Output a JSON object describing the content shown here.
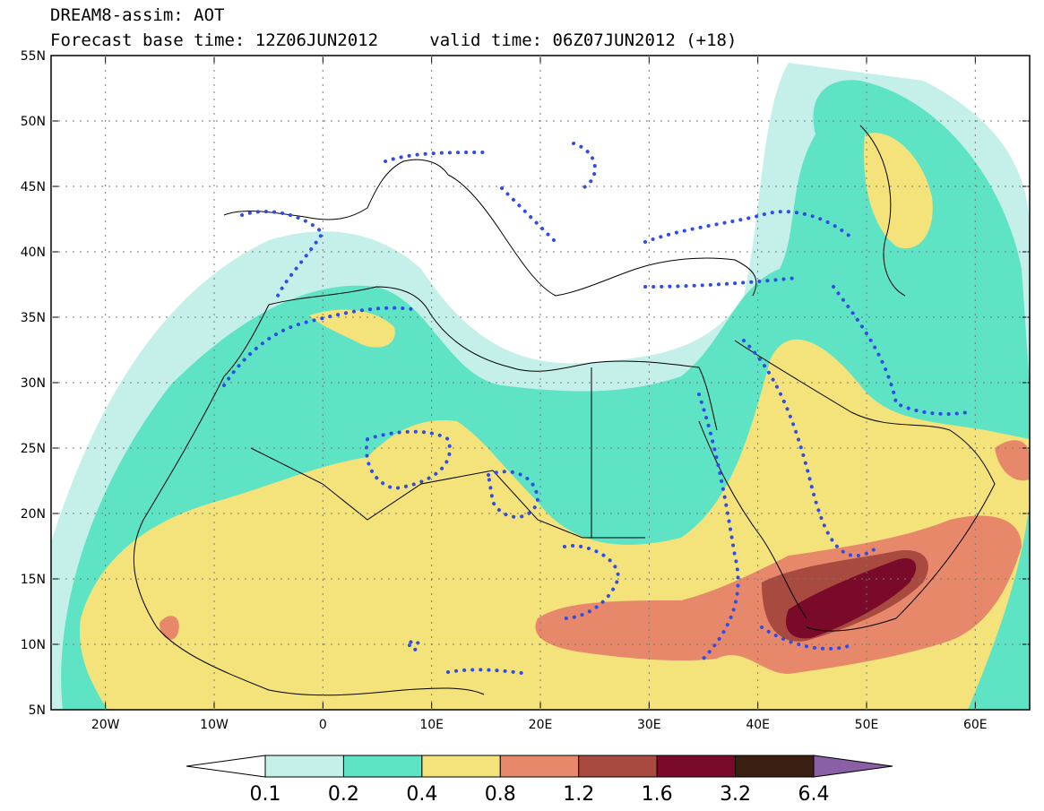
{
  "header": {
    "title": "DREAM8-assim: AOT",
    "base_time": "Forecast base time: 12Z06JUN2012",
    "valid_time": "valid time: 06Z07JUN2012 (+18)"
  },
  "axes": {
    "lat_labels": [
      "55N",
      "50N",
      "45N",
      "40N",
      "35N",
      "30N",
      "25N",
      "20N",
      "15N",
      "10N",
      "5N"
    ],
    "lon_labels": [
      "20W",
      "10W",
      "0",
      "10E",
      "20E",
      "30E",
      "40E",
      "50E",
      "60E"
    ]
  },
  "colorbar": {
    "colors": [
      "#c4f0e9",
      "#5ee3c4",
      "#f4e37a",
      "#e8886a",
      "#a94a40",
      "#7a0a2a",
      "#3a1f12"
    ],
    "under_color": "#ffffff",
    "over_color": "#8b5fa6",
    "labels": [
      "0.1",
      "0.2",
      "0.4",
      "0.8",
      "1.2",
      "1.6",
      "3.2",
      "6.4"
    ]
  }
}
